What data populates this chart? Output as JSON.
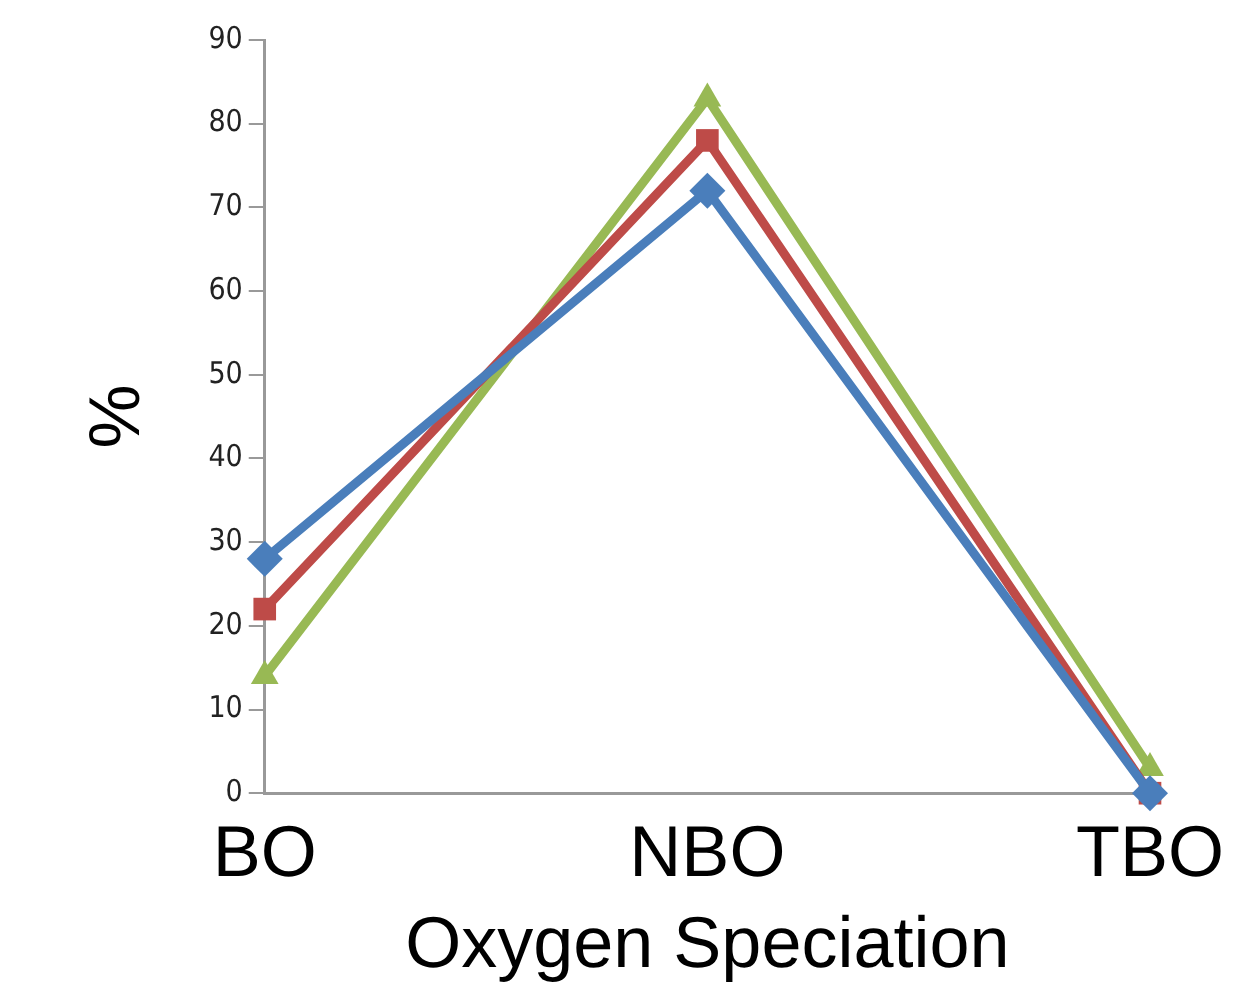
{
  "chart_data": {
    "type": "line",
    "xlabel": "Oxygen Speciation",
    "ylabel": "%",
    "categories": [
      "BO",
      "NBO",
      "TBO"
    ],
    "series": [
      {
        "color": "#4a7ebb",
        "values": [
          28,
          72,
          0
        ],
        "marker": "diamond"
      },
      {
        "color": "#be4b48",
        "values": [
          22,
          78,
          0
        ],
        "marker": "square"
      },
      {
        "color": "#98b954",
        "values": [
          14,
          83,
          3
        ],
        "marker": "triangle"
      }
    ],
    "ylim": [
      0,
      90
    ],
    "yticks": [
      0,
      10,
      20,
      30,
      40,
      50,
      60,
      70,
      80,
      90
    ],
    "grid": false,
    "legend": false,
    "line_style": "solid"
  }
}
